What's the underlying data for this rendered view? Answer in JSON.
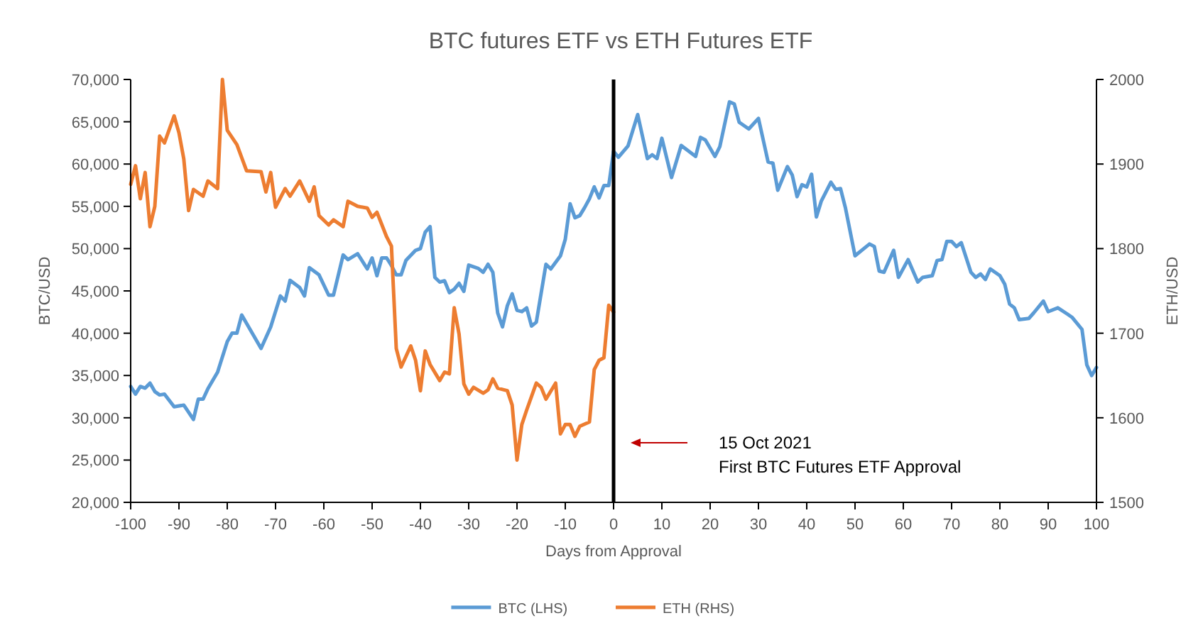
{
  "chart_data": {
    "type": "line",
    "title": "BTC futures ETF vs ETH Futures ETF",
    "xlabel": "Days from Approval",
    "ylabel": "BTC/USD",
    "y2label": "ETH/USD",
    "xlim": [
      -100,
      100
    ],
    "xticks": [
      -100,
      -90,
      -80,
      -70,
      -60,
      -50,
      -40,
      -30,
      -20,
      -10,
      0,
      10,
      20,
      30,
      40,
      50,
      60,
      70,
      80,
      90,
      100
    ],
    "ylim": [
      20000,
      70000
    ],
    "yticks": [
      {
        "value": 20000,
        "label": "20,000"
      },
      {
        "value": 25000,
        "label": "25,000"
      },
      {
        "value": 30000,
        "label": "30,000"
      },
      {
        "value": 35000,
        "label": "35,000"
      },
      {
        "value": 40000,
        "label": "40,000"
      },
      {
        "value": 45000,
        "label": "45,000"
      },
      {
        "value": 50000,
        "label": "50,000"
      },
      {
        "value": 55000,
        "label": "55,000"
      },
      {
        "value": 60000,
        "label": "60,000"
      },
      {
        "value": 65000,
        "label": "65,000"
      },
      {
        "value": 70000,
        "label": "70,000"
      }
    ],
    "y2lim": [
      1500,
      2000
    ],
    "y2ticks": [
      1500,
      1600,
      1700,
      1800,
      1900,
      2000
    ],
    "grid": false,
    "legend": "bottom",
    "marker": "none",
    "line_style": "solid",
    "series": [
      {
        "name": "BTC (LHS)",
        "color": "#5b9bd5",
        "x": [
          -100,
          -99,
          -98,
          -97,
          -96,
          -95,
          -94,
          -93,
          -91,
          -89,
          -87,
          -86,
          -85,
          -84,
          -82,
          -80,
          -79,
          -78,
          -77,
          -73,
          -71,
          -69,
          -68,
          -67,
          -65,
          -64,
          -63,
          -61,
          -59,
          -58,
          -56,
          -55,
          -53,
          -51,
          -50,
          -49,
          -48,
          -47,
          -46,
          -45,
          -44,
          -43,
          -41,
          -40,
          -39,
          -38,
          -37,
          -36,
          -35,
          -34,
          -33,
          -32,
          -31,
          -30,
          -28,
          -27,
          -26,
          -25,
          -24,
          -23,
          -22,
          -21,
          -20,
          -19,
          -18,
          -17,
          -16,
          -14,
          -13,
          -11,
          -10,
          -9,
          -8,
          -7,
          -6,
          -5,
          -4,
          -3,
          -2,
          -1,
          0,
          1,
          3,
          5,
          7,
          8,
          9,
          10,
          12,
          14,
          17,
          18,
          19,
          21,
          22,
          24,
          25,
          26,
          28,
          30,
          32,
          33,
          34,
          36,
          37,
          38,
          39,
          40,
          41,
          42,
          43,
          45,
          46,
          47,
          48,
          50,
          53,
          54,
          55,
          56,
          58,
          59,
          61,
          63,
          64,
          66,
          67,
          68,
          69,
          70,
          71,
          72,
          74,
          75,
          76,
          77,
          78,
          80,
          81,
          82,
          83,
          84,
          86,
          87,
          89,
          90,
          92,
          94,
          95,
          97,
          98,
          99,
          100
        ],
        "values": [
          33700,
          32800,
          33700,
          33500,
          34100,
          33100,
          32700,
          32800,
          31300,
          31500,
          29800,
          32200,
          32200,
          33450,
          35400,
          39000,
          40000,
          40000,
          42150,
          38200,
          40750,
          44400,
          43800,
          46250,
          45400,
          44400,
          47750,
          46900,
          44500,
          44500,
          49250,
          48700,
          49400,
          47600,
          48900,
          46800,
          48900,
          48900,
          48000,
          46900,
          46900,
          48600,
          49800,
          50000,
          51950,
          52600,
          46600,
          46050,
          46200,
          44800,
          45200,
          45900,
          44950,
          48050,
          47650,
          47200,
          48150,
          47200,
          42400,
          40750,
          43250,
          44650,
          42700,
          42550,
          43000,
          40850,
          41300,
          48150,
          47600,
          49150,
          51100,
          55300,
          53650,
          53900,
          54850,
          55900,
          57300,
          56000,
          57450,
          57450,
          61500,
          60800,
          62150,
          65850,
          60650,
          61100,
          60650,
          63050,
          58400,
          62200,
          60900,
          63150,
          62850,
          60900,
          62050,
          67350,
          67100,
          64950,
          64150,
          65400,
          60250,
          60100,
          56900,
          59700,
          58700,
          56150,
          57550,
          57300,
          58800,
          53750,
          55600,
          57850,
          57000,
          57100,
          54850,
          49150,
          50550,
          50250,
          47350,
          47200,
          49800,
          46600,
          48700,
          46050,
          46600,
          46800,
          48600,
          48700,
          50850,
          50850,
          50250,
          50700,
          47200,
          46600,
          47000,
          46350,
          47600,
          46800,
          45800,
          43450,
          43000,
          41600,
          41750,
          42400,
          43800,
          42550,
          43000,
          42250,
          41850,
          40450,
          36250,
          35000,
          35950
        ]
      },
      {
        "name": "ETH (RHS)",
        "color": "#ed7d31",
        "axis": "y2",
        "x": [
          -100,
          -99,
          -98,
          -97,
          -96,
          -95,
          -94,
          -93,
          -91,
          -90,
          -89,
          -88,
          -87,
          -85,
          -84,
          -82,
          -81,
          -80,
          -78,
          -76,
          -73,
          -72,
          -71,
          -70,
          -68,
          -67,
          -65,
          -63,
          -62,
          -61,
          -59,
          -58,
          -56,
          -55,
          -53,
          -51,
          -50,
          -49,
          -47,
          -46,
          -45,
          -44,
          -42,
          -41,
          -40,
          -39,
          -38,
          -36,
          -35,
          -34,
          -33,
          -32,
          -31,
          -30,
          -29,
          -27,
          -26,
          -25,
          -24,
          -22,
          -21,
          -20,
          -19,
          -18,
          -16,
          -15,
          -14,
          -12,
          -11,
          -10,
          -9,
          -8,
          -7,
          -5,
          -4,
          -3,
          -2,
          -1,
          0
        ],
        "values": [
          1876,
          1898,
          1859,
          1890,
          1826,
          1850,
          1933,
          1925,
          1957,
          1937,
          1906,
          1845,
          1870,
          1862,
          1880,
          1871,
          2000,
          1940,
          1923,
          1892,
          1891,
          1867,
          1890,
          1849,
          1871,
          1862,
          1880,
          1856,
          1873,
          1839,
          1828,
          1834,
          1826,
          1856,
          1850,
          1848,
          1837,
          1843,
          1814,
          1803,
          1682,
          1660,
          1685,
          1668,
          1632,
          1679,
          1663,
          1644,
          1654,
          1652,
          1730,
          1699,
          1640,
          1628,
          1636,
          1629,
          1633,
          1646,
          1635,
          1632,
          1615,
          1550,
          1592,
          1609,
          1641,
          1636,
          1622,
          1641,
          1581,
          1592,
          1592,
          1578,
          1590,
          1595,
          1657,
          1668,
          1671,
          1733,
          1725
        ]
      }
    ],
    "ref_lines": [
      {
        "axis": "x",
        "value": 0,
        "color": "#000000",
        "line_style": "solid"
      }
    ],
    "annotations": [
      "15 Oct 2021\nFirst BTC Futures ETF Approval"
    ]
  }
}
